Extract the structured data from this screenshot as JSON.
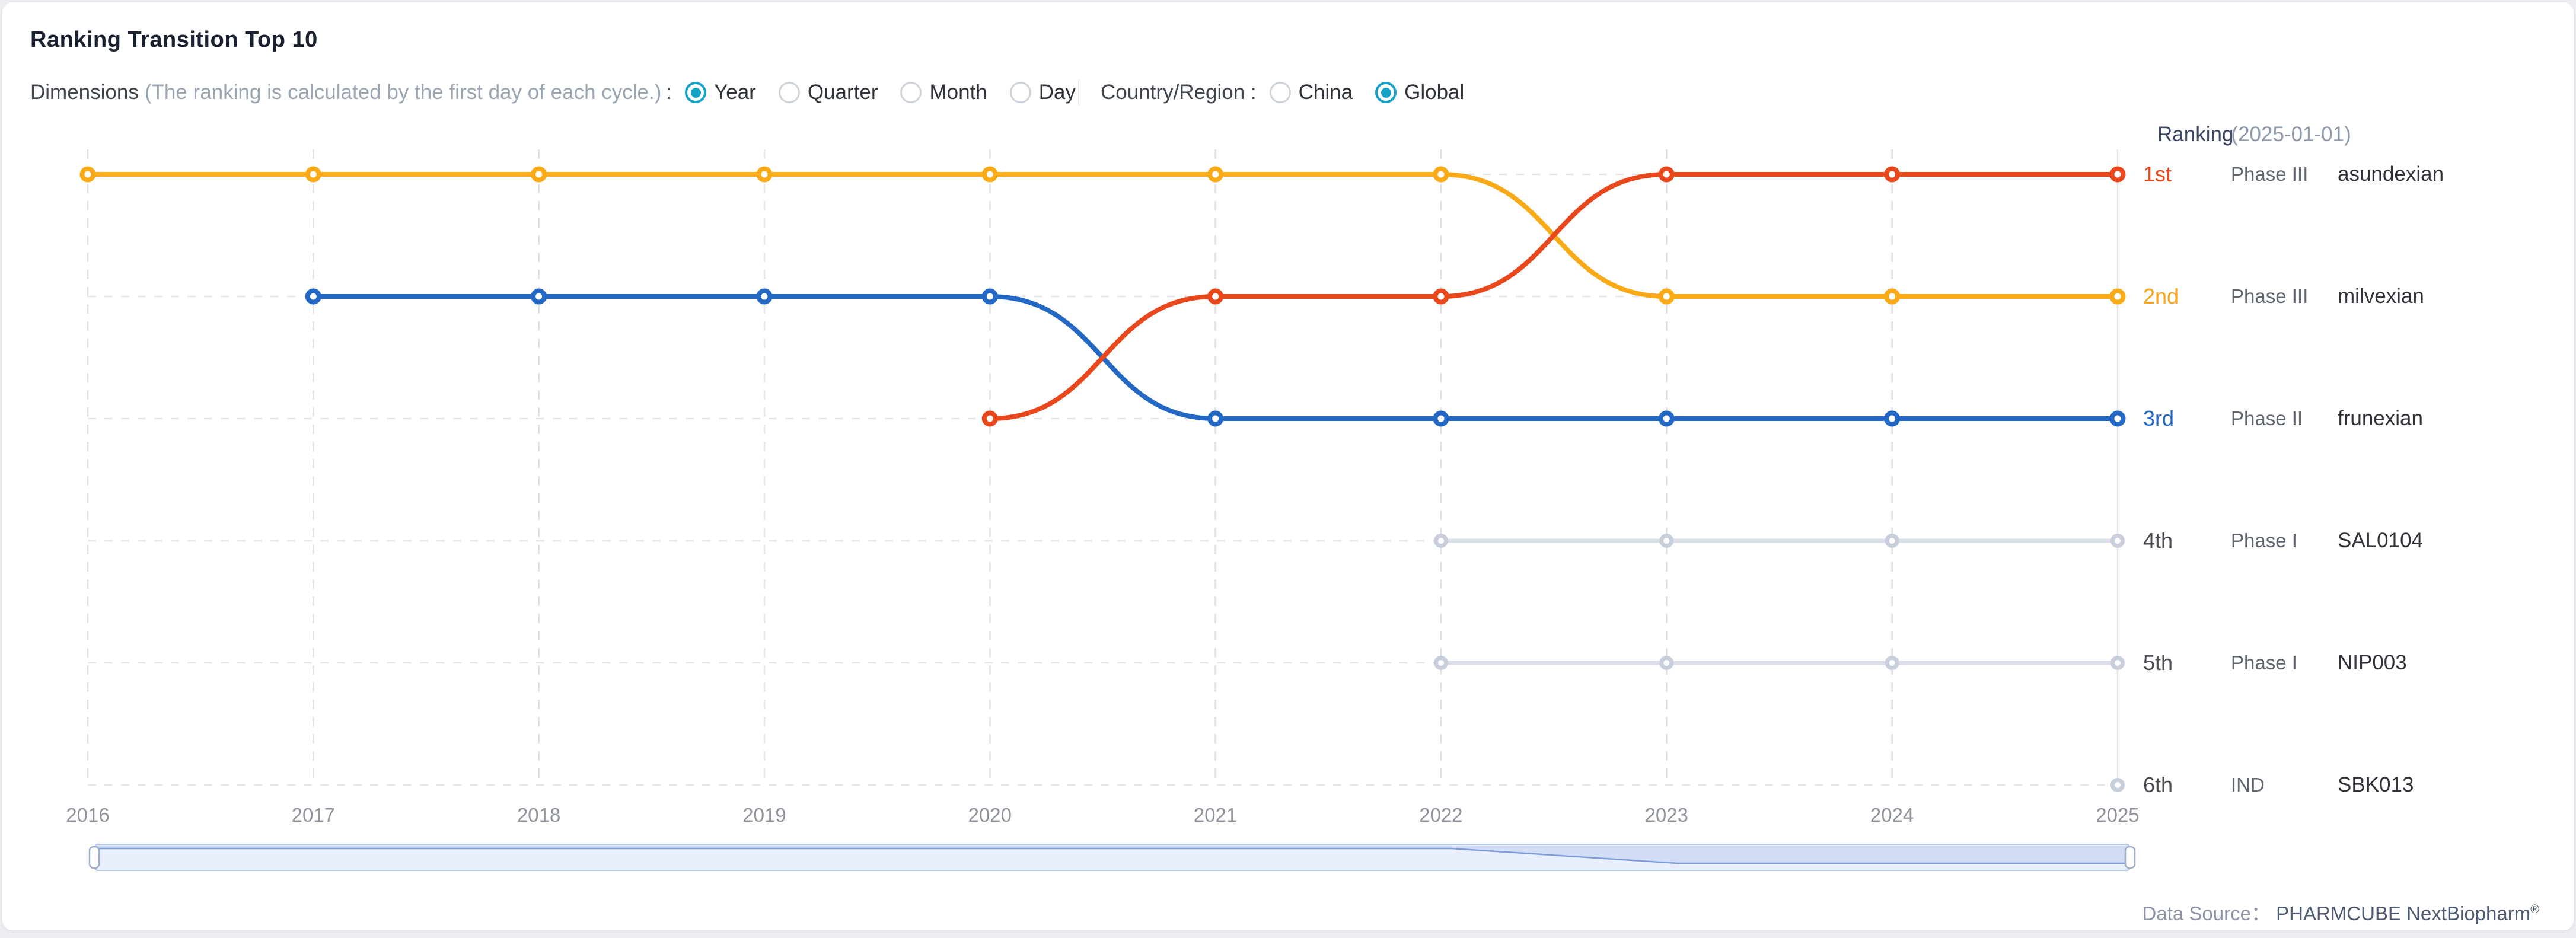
{
  "header": {
    "title": "Ranking Transition Top 10"
  },
  "controls": {
    "label": "Dimensions",
    "note": "(The ranking is calculated by the first day of each cycle.)",
    "colon": ":",
    "dimension_options": [
      {
        "label": "Year",
        "selected": true
      },
      {
        "label": "Quarter",
        "selected": false
      },
      {
        "label": "Month",
        "selected": false
      },
      {
        "label": "Day",
        "selected": false
      }
    ],
    "region_label": "Country/Region :",
    "region_options": [
      {
        "label": "China",
        "selected": false
      },
      {
        "label": "Global",
        "selected": true
      }
    ],
    "selected_color": "#14a1c6"
  },
  "legend": {
    "title": "Ranking",
    "date": "(2025-01-01)",
    "rows": [
      {
        "rank": "1st",
        "rank_color": "#e8481c",
        "phase": "Phase III",
        "name": "asundexian"
      },
      {
        "rank": "2nd",
        "rank_color": "#f9a41b",
        "phase": "Phase III",
        "name": "milvexian"
      },
      {
        "rank": "3rd",
        "rank_color": "#2368c4",
        "phase": "Phase II",
        "name": "frunexian"
      },
      {
        "rank": "4th",
        "rank_color": "#494d52",
        "phase": "Phase I",
        "name": "SAL0104"
      },
      {
        "rank": "5th",
        "rank_color": "#494d52",
        "phase": "Phase I",
        "name": "NIP003"
      },
      {
        "rank": "6th",
        "rank_color": "#494d52",
        "phase": "IND",
        "name": "SBK013"
      }
    ]
  },
  "footer": {
    "label": "Data Source：",
    "brand": "PHARMCUBE NextBiopharm",
    "reg": "®"
  },
  "chart_data": {
    "type": "line",
    "title": "Ranking Transition Top 10",
    "x_categories": [
      "2016",
      "2017",
      "2018",
      "2019",
      "2020",
      "2021",
      "2022",
      "2023",
      "2024",
      "2025"
    ],
    "y_rank_labels": [
      "1st",
      "2nd",
      "3rd",
      "4th",
      "5th",
      "6th"
    ],
    "y_axis_inverted": true,
    "grid": {
      "vertical": "dashed",
      "horizontal": "dashed",
      "last_vertical": "solid"
    },
    "legend_position": "right",
    "series": [
      {
        "name": "asundexian",
        "phase": "Phase III",
        "color": "#e8481c",
        "ranks": [
          null,
          null,
          null,
          null,
          3,
          2,
          2,
          1,
          1,
          1
        ]
      },
      {
        "name": "milvexian",
        "phase": "Phase III",
        "color": "#fbaa17",
        "ranks": [
          1,
          1,
          1,
          1,
          1,
          1,
          1,
          2,
          2,
          2
        ]
      },
      {
        "name": "frunexian",
        "phase": "Phase II",
        "color": "#2368c4",
        "ranks": [
          null,
          2,
          2,
          2,
          2,
          3,
          3,
          3,
          3,
          3
        ]
      },
      {
        "name": "SAL0104",
        "phase": "Phase I",
        "color": "#d9dee8",
        "ranks": [
          null,
          null,
          null,
          null,
          null,
          null,
          4,
          4,
          4,
          4
        ]
      },
      {
        "name": "NIP003",
        "phase": "Phase I",
        "color": "#d9dee8",
        "ranks": [
          null,
          null,
          null,
          null,
          null,
          null,
          5,
          5,
          5,
          5
        ]
      },
      {
        "name": "SBK013",
        "phase": "IND",
        "color": "#d9dee8",
        "ranks": [
          null,
          null,
          null,
          null,
          null,
          null,
          null,
          null,
          null,
          6
        ]
      }
    ],
    "datazoom": {
      "shadow_series": "milvexian",
      "range": [
        "2016",
        "2025"
      ]
    }
  }
}
